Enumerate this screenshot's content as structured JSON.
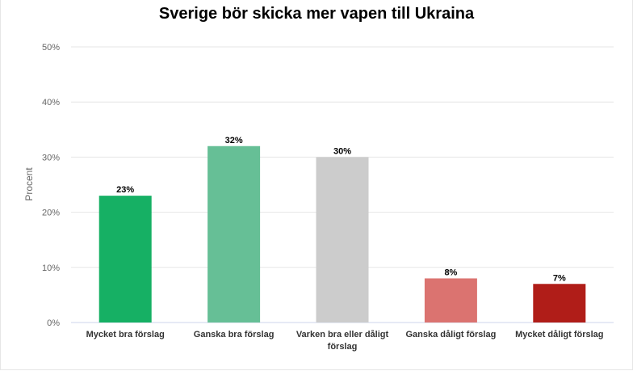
{
  "chart_data": {
    "type": "bar",
    "title": "Sverige bör skicka mer vapen till Ukraina",
    "ylabel": "Procent",
    "xlabel": "",
    "ylim": [
      0,
      50
    ],
    "yticks": [
      "0%",
      "10%",
      "20%",
      "30%",
      "40%",
      "50%"
    ],
    "ytick_values": [
      0,
      10,
      20,
      30,
      40,
      50
    ],
    "categories": [
      [
        "Mycket bra förslag"
      ],
      [
        "Ganska bra förslag"
      ],
      [
        "Varken bra eller dåligt",
        "förslag"
      ],
      [
        "Ganska dåligt förslag"
      ],
      [
        "Mycket dåligt förslag"
      ]
    ],
    "values": [
      23,
      32,
      30,
      8,
      7
    ],
    "data_labels": [
      "23%",
      "32%",
      "30%",
      "8%",
      "7%"
    ],
    "colors": [
      "#16b064",
      "#66bf96",
      "#cccccc",
      "#db7370",
      "#b01d18"
    ],
    "grid": true,
    "legend": "none"
  }
}
